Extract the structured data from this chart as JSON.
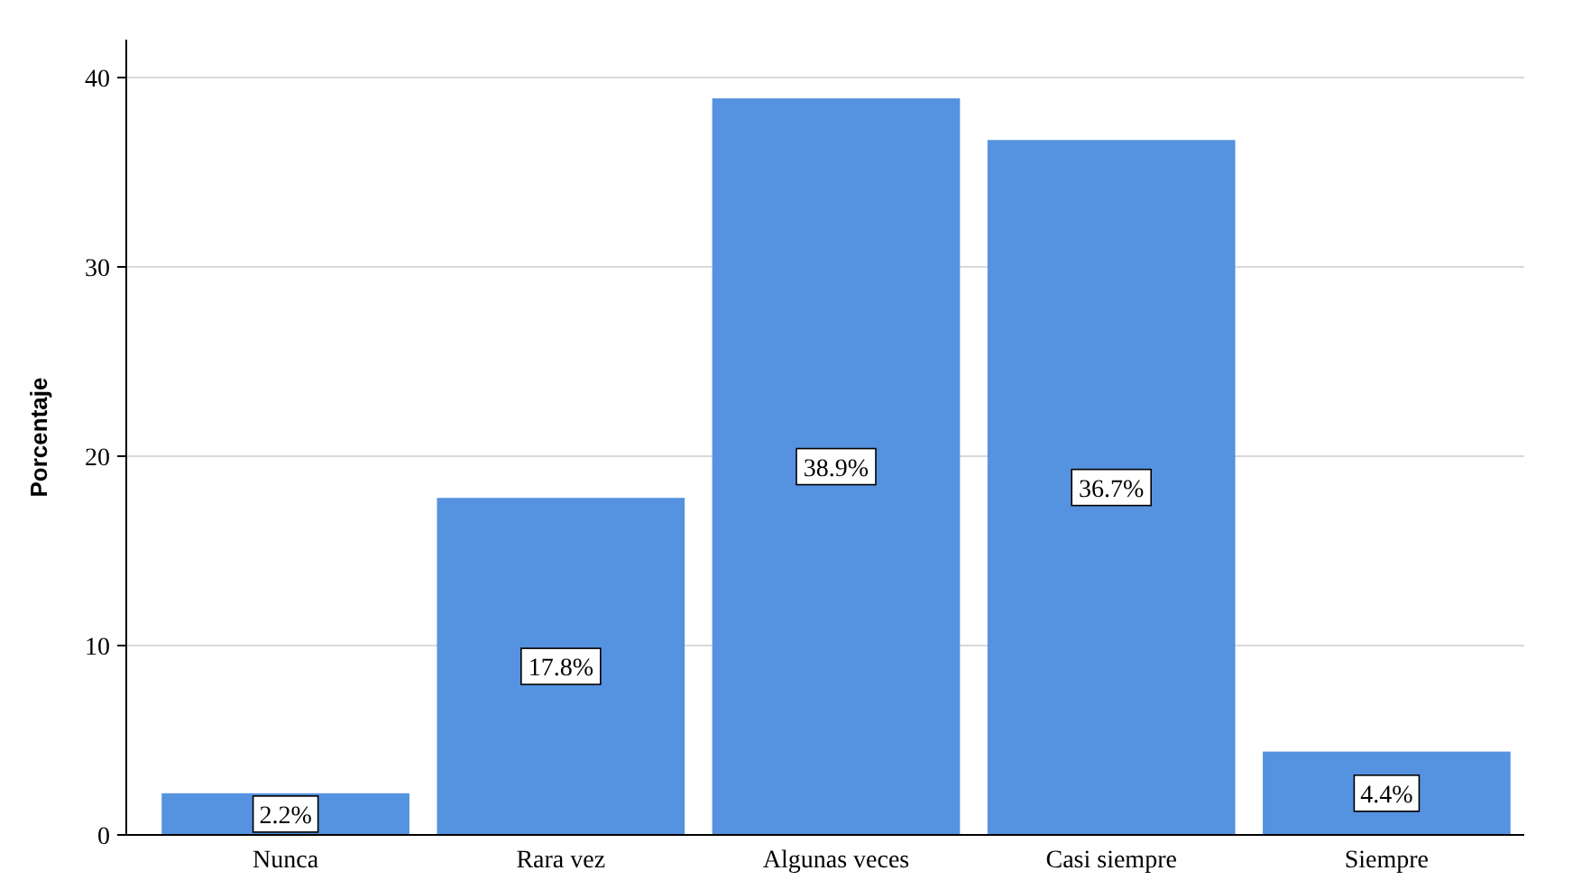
{
  "chart_data": {
    "type": "bar",
    "ylabel": "Porcentaje",
    "categories": [
      "Nunca",
      "Rara vez",
      "Algunas veces",
      "Casi siempre",
      "Siempre"
    ],
    "values": [
      2.2,
      17.8,
      38.9,
      36.7,
      4.4
    ],
    "value_labels": [
      "2.2%",
      "17.8%",
      "38.9%",
      "36.7%",
      "4.4%"
    ],
    "color": "#5592e0",
    "ylim": [
      0,
      42
    ],
    "yticks": [
      0,
      10,
      20,
      30,
      40
    ],
    "grid": "y"
  }
}
